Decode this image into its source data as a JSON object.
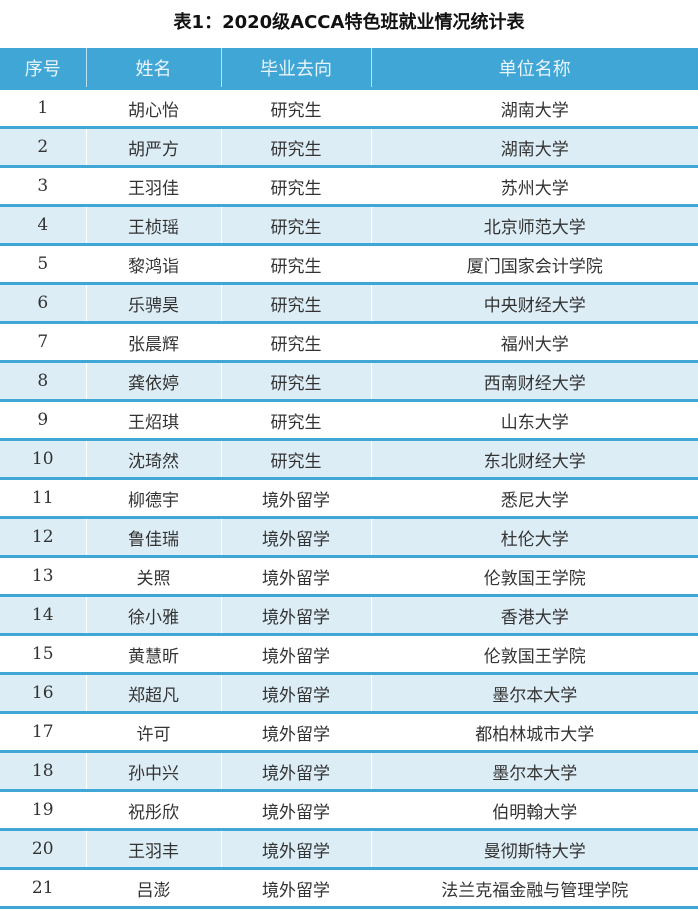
{
  "title": "表1：2020级ACCA特色班就业情况统计表",
  "headers": [
    "序号",
    "姓名",
    "毕业去向",
    "单位名称"
  ],
  "rows": [
    [
      "1",
      "胡心怡",
      "研究生",
      "湖南大学"
    ],
    [
      "2",
      "胡严方",
      "研究生",
      "湖南大学"
    ],
    [
      "3",
      "王羽佳",
      "研究生",
      "苏州大学"
    ],
    [
      "4",
      "王桢瑶",
      "研究生",
      "北京师范大学"
    ],
    [
      "5",
      "黎鸿诣",
      "研究生",
      "厦门国家会计学院"
    ],
    [
      "6",
      "乐骋昊",
      "研究生",
      "中央财经大学"
    ],
    [
      "7",
      "张晨辉",
      "研究生",
      "福州大学"
    ],
    [
      "8",
      "龚依婷",
      "研究生",
      "西南财经大学"
    ],
    [
      "9",
      "王炤琪",
      "研究生",
      "山东大学"
    ],
    [
      "10",
      "沈琦然",
      "研究生",
      "东北财经大学"
    ],
    [
      "11",
      "柳德宇",
      "境外留学",
      "悉尼大学"
    ],
    [
      "12",
      "鲁佳瑞",
      "境外留学",
      "杜伦大学"
    ],
    [
      "13",
      "关照",
      "境外留学",
      "伦敦国王学院"
    ],
    [
      "14",
      "徐小雅",
      "境外留学",
      "香港大学"
    ],
    [
      "15",
      "黄慧昕",
      "境外留学",
      "伦敦国王学院"
    ],
    [
      "16",
      "郑超凡",
      "境外留学",
      "墨尔本大学"
    ],
    [
      "17",
      "许可",
      "境外留学",
      "都柏林城市大学"
    ],
    [
      "18",
      "孙中兴",
      "境外留学",
      "墨尔本大学"
    ],
    [
      "19",
      "祝彤欣",
      "境外留学",
      "伯明翰大学"
    ],
    [
      "20",
      "王羽丰",
      "境外留学",
      "曼彻斯特大学"
    ],
    [
      "21",
      "吕澎",
      "境外留学",
      "法兰克福金融与管理学院"
    ]
  ],
  "colors": {
    "header": "#3fa6d6",
    "stripe": "#ddedf6"
  }
}
